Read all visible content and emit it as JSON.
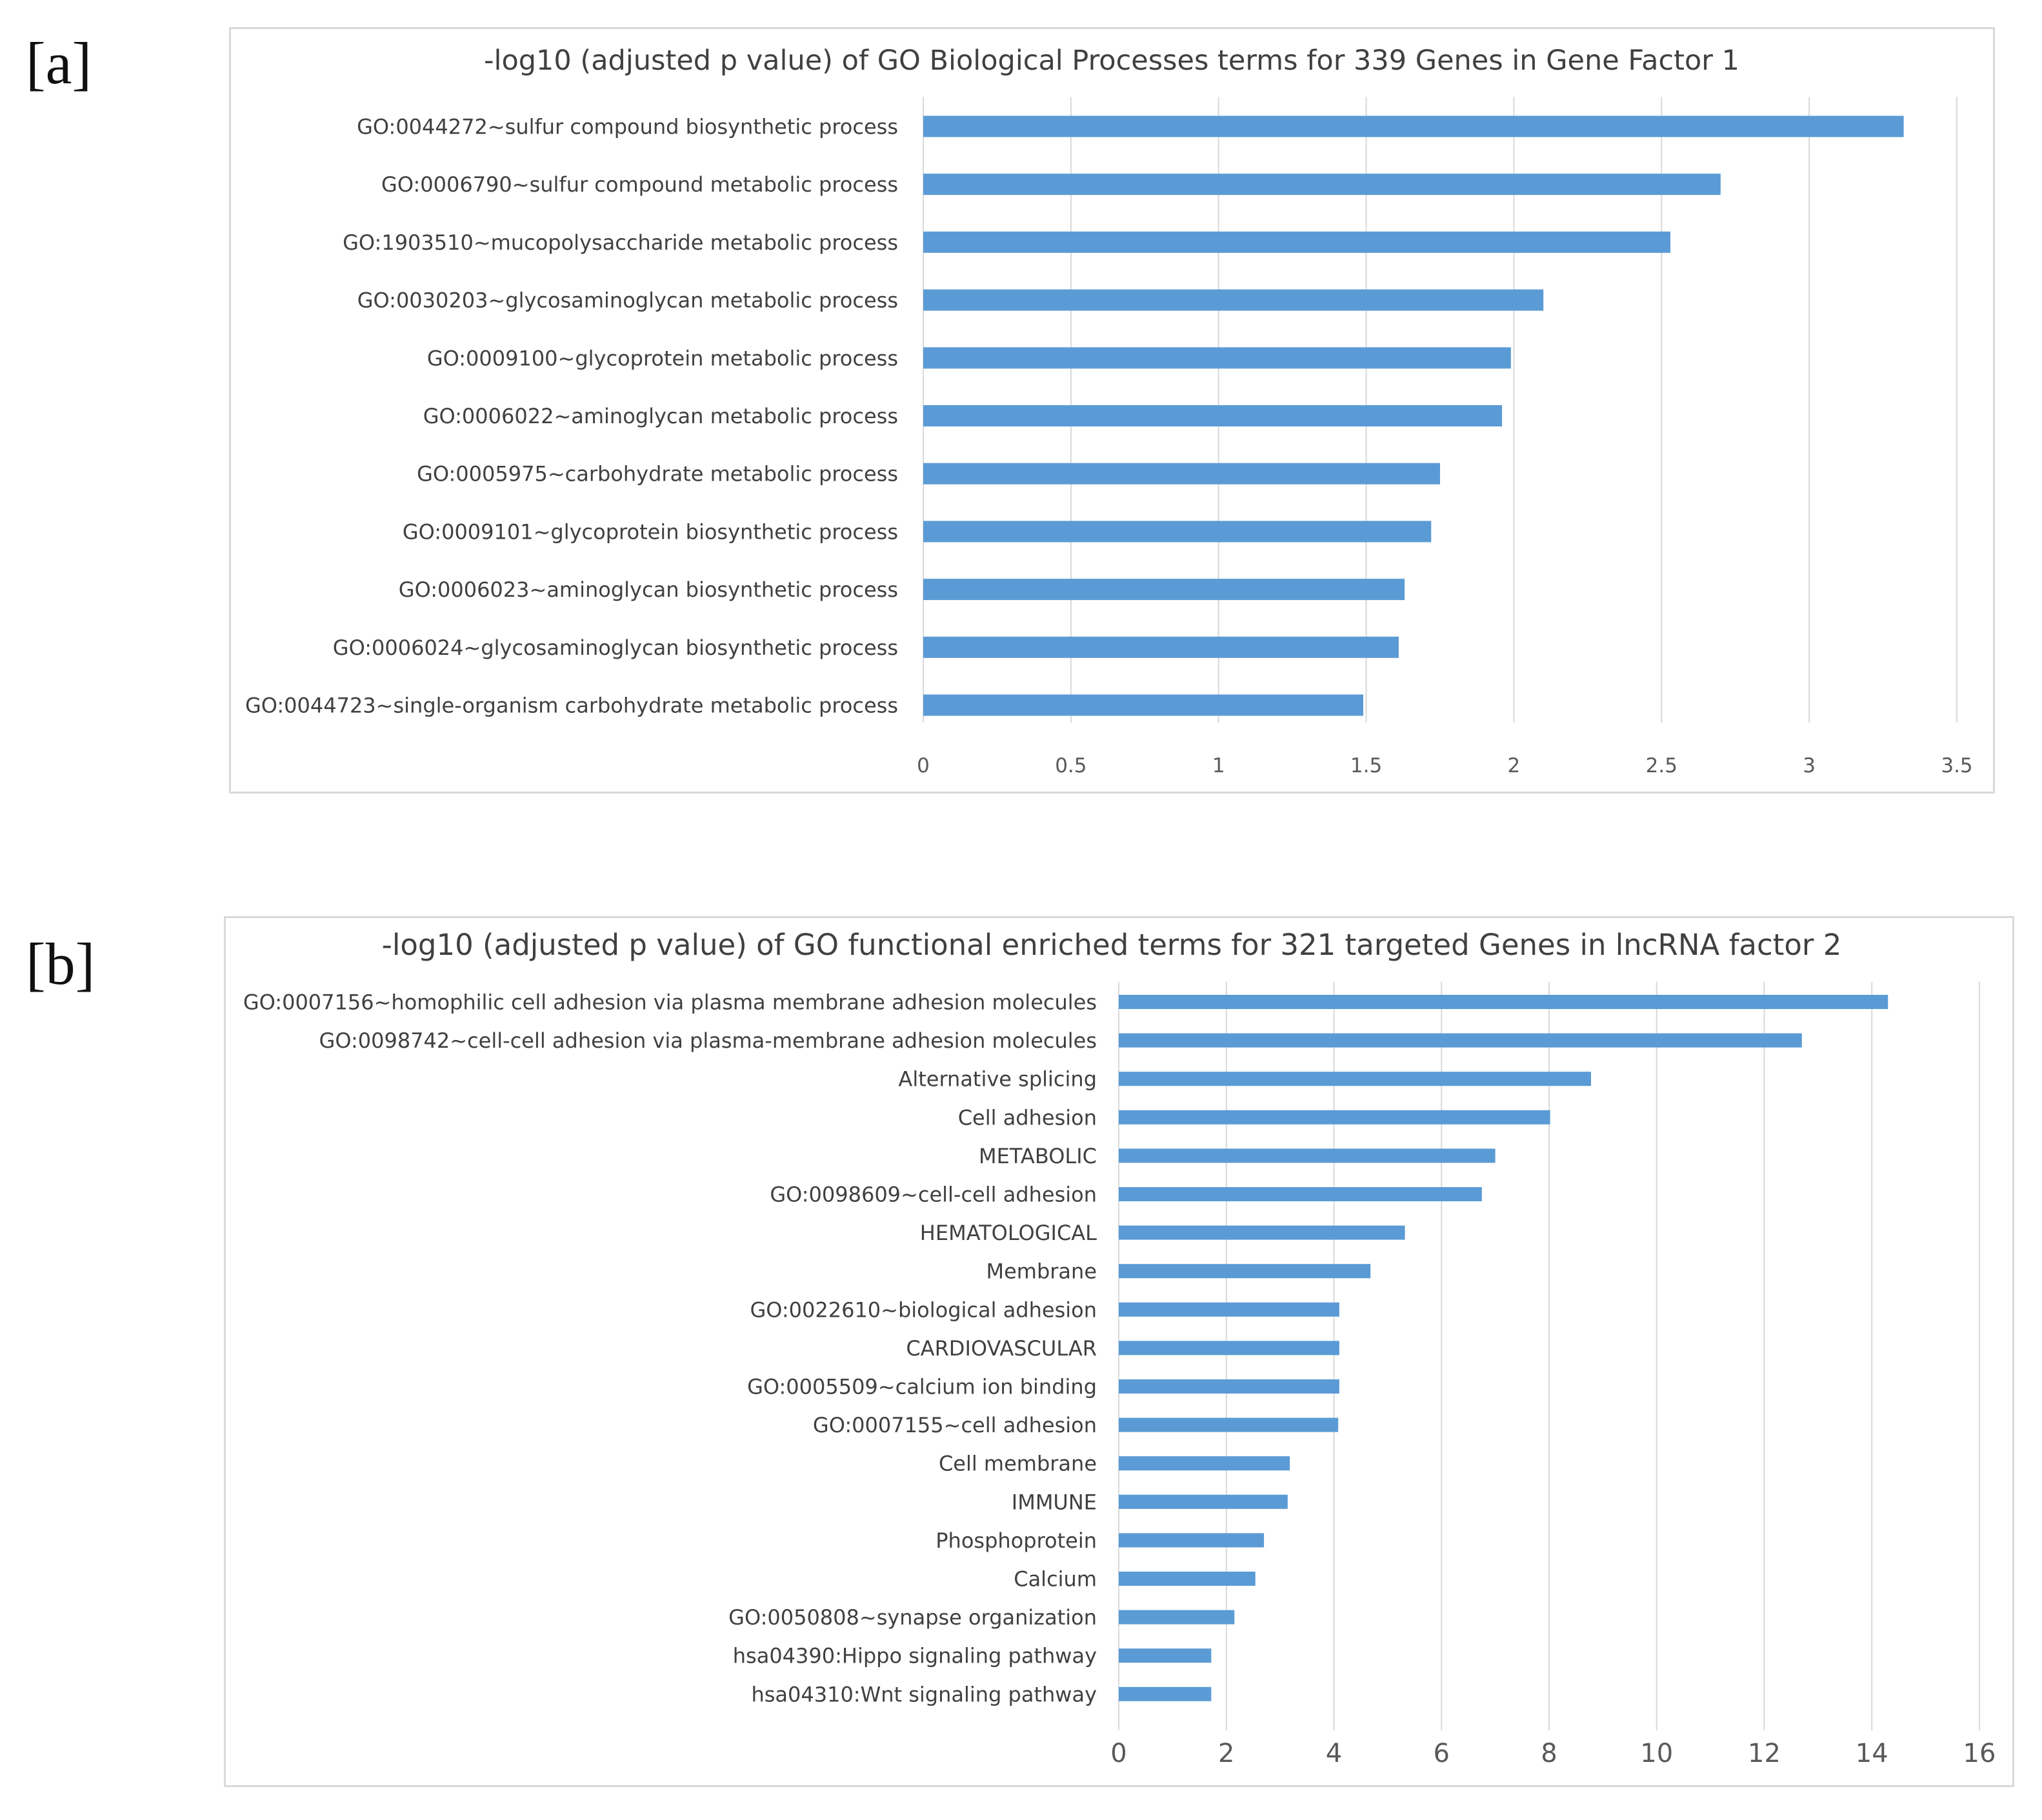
{
  "figure": {
    "panel_a_label": "[a]",
    "panel_b_label": "[b]"
  },
  "chart_data": [
    {
      "type": "bar",
      "orientation": "horizontal",
      "title": "-log10 (adjusted p value) of GO Biological Processes terms for 339 Genes in Gene Factor 1",
      "xlabel": "",
      "ylabel": "",
      "xlim": [
        0,
        3.5
      ],
      "ticks": [
        0,
        0.5,
        1,
        1.5,
        2,
        2.5,
        3,
        3.5
      ],
      "tick_labels": [
        "0",
        "0.5",
        "1",
        "1.5",
        "2",
        "2.5",
        "3",
        "3.5"
      ],
      "grid": true,
      "color": "#5b9bd5",
      "categories": [
        "GO:0044272~sulfur compound biosynthetic process",
        "GO:0006790~sulfur compound metabolic process",
        "GO:1903510~mucopolysaccharide metabolic process",
        "GO:0030203~glycosaminoglycan metabolic process",
        "GO:0009100~glycoprotein metabolic process",
        "GO:0006022~aminoglycan metabolic process",
        "GO:0005975~carbohydrate metabolic process",
        "GO:0009101~glycoprotein biosynthetic process",
        "GO:0006023~aminoglycan biosynthetic process",
        "GO:0006024~glycosaminoglycan biosynthetic process",
        "GO:0044723~single-organism carbohydrate metabolic process"
      ],
      "values": [
        3.32,
        2.7,
        2.53,
        2.1,
        1.99,
        1.96,
        1.75,
        1.72,
        1.63,
        1.61,
        1.49
      ]
    },
    {
      "type": "bar",
      "orientation": "horizontal",
      "title": "-log10 (adjusted p value) of GO functional enriched terms for 321 targeted Genes in lncRNA factor 2",
      "xlabel": "",
      "ylabel": "",
      "xlim": [
        0,
        16
      ],
      "ticks": [
        0,
        2,
        4,
        6,
        8,
        10,
        12,
        14,
        16
      ],
      "tick_labels": [
        "0",
        "2",
        "4",
        "6",
        "8",
        "10",
        "12",
        "14",
        "16"
      ],
      "grid": true,
      "color": "#5b9bd5",
      "categories": [
        "GO:0007156~homophilic cell adhesion via plasma membrane adhesion molecules",
        "GO:0098742~cell-cell adhesion via plasma-membrane adhesion molecules",
        "Alternative splicing",
        "Cell adhesion",
        "METABOLIC",
        "GO:0098609~cell-cell adhesion",
        "HEMATOLOGICAL",
        "Membrane",
        "GO:0022610~biological adhesion",
        "CARDIOVASCULAR",
        "GO:0005509~calcium ion binding",
        "GO:0007155~cell adhesion",
        "Cell membrane",
        "IMMUNE",
        "Phosphoprotein",
        "Calcium",
        "GO:0050808~synapse organization",
        "hsa04390:Hippo signaling pathway",
        "hsa04310:Wnt signaling pathway"
      ],
      "values": [
        14.3,
        12.7,
        8.78,
        8.02,
        7.0,
        6.75,
        5.32,
        4.68,
        4.1,
        4.1,
        4.1,
        4.08,
        3.18,
        3.14,
        2.7,
        2.54,
        2.15,
        1.72,
        1.72
      ]
    }
  ]
}
